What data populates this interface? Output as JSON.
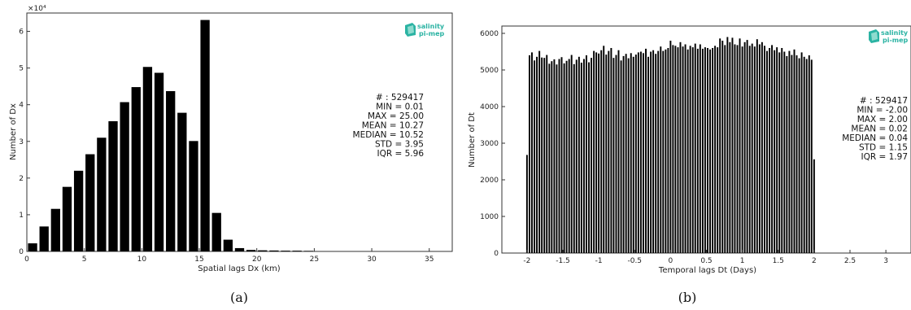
{
  "colors": {
    "bar": "#000000",
    "axis": "#333333",
    "logo_teal": "#2bb3a3"
  },
  "logo": {
    "line1": "salinity",
    "line2": "pi-mep"
  },
  "chart_data": [
    {
      "type": "bar",
      "caption": "(a)",
      "xlabel": "Spatial lags Dx (km)",
      "ylabel": "Number of Dx",
      "exponent_label": "×10⁴",
      "xlim": [
        0,
        37
      ],
      "ylim": [
        0,
        65000
      ],
      "xticks": [
        0,
        5,
        10,
        15,
        20,
        25,
        30,
        35
      ],
      "yticks": [
        0,
        10000,
        20000,
        30000,
        40000,
        50000,
        60000
      ],
      "ytick_labels": [
        "0",
        "1",
        "2",
        "3",
        "4",
        "5",
        "6"
      ],
      "bar_width": 0.8,
      "x": [
        0.5,
        1.5,
        2.5,
        3.5,
        4.5,
        5.5,
        6.5,
        7.5,
        8.5,
        9.5,
        10.5,
        11.5,
        12.5,
        13.5,
        14.5,
        15.5,
        16.5,
        17.5,
        18.5,
        19.5,
        20.5,
        21.5,
        22.5,
        23.5,
        24.5
      ],
      "values": [
        2200,
        6800,
        11600,
        17600,
        22000,
        26500,
        31000,
        35500,
        40700,
        44800,
        50300,
        48700,
        43700,
        37800,
        30100,
        63100,
        10500,
        3200,
        900,
        400,
        300,
        250,
        200,
        200,
        150
      ],
      "stats": [
        "# : 529417",
        "MIN = 0.01",
        "MAX =  25.00",
        "MEAN = 10.27",
        "MEDIAN = 10.52",
        "STD = 3.95",
        "IQR = 5.96"
      ]
    },
    {
      "type": "bar",
      "caption": "(b)",
      "xlabel": "Temporal lags Dt (Days)",
      "ylabel": "Number of Dt",
      "xlim": [
        -2.35,
        3.35
      ],
      "ylim": [
        0,
        6200
      ],
      "xticks": [
        -2,
        -1.5,
        -1,
        -0.5,
        0,
        0.5,
        1,
        1.5,
        2,
        2.5,
        3
      ],
      "yticks": [
        0,
        1000,
        2000,
        3000,
        4000,
        5000,
        6000
      ],
      "bar_width": 0.022,
      "x": [
        -2.0,
        -1.965,
        -1.931,
        -1.896,
        -1.862,
        -1.827,
        -1.793,
        -1.758,
        -1.724,
        -1.689,
        -1.655,
        -1.62,
        -1.586,
        -1.551,
        -1.517,
        -1.482,
        -1.448,
        -1.413,
        -1.379,
        -1.344,
        -1.31,
        -1.275,
        -1.241,
        -1.206,
        -1.172,
        -1.137,
        -1.103,
        -1.068,
        -1.034,
        -1.0,
        -0.965,
        -0.931,
        -0.896,
        -0.862,
        -0.827,
        -0.793,
        -0.758,
        -0.724,
        -0.689,
        -0.655,
        -0.62,
        -0.586,
        -0.551,
        -0.517,
        -0.482,
        -0.448,
        -0.413,
        -0.379,
        -0.344,
        -0.31,
        -0.275,
        -0.241,
        -0.206,
        -0.172,
        -0.137,
        -0.103,
        -0.068,
        -0.034,
        0.0,
        0.034,
        0.068,
        0.103,
        0.137,
        0.172,
        0.206,
        0.241,
        0.275,
        0.31,
        0.344,
        0.379,
        0.413,
        0.448,
        0.482,
        0.517,
        0.551,
        0.586,
        0.62,
        0.655,
        0.689,
        0.724,
        0.758,
        0.793,
        0.827,
        0.862,
        0.896,
        0.931,
        0.965,
        1.0,
        1.034,
        1.068,
        1.103,
        1.137,
        1.172,
        1.206,
        1.241,
        1.275,
        1.31,
        1.344,
        1.379,
        1.413,
        1.448,
        1.482,
        1.517,
        1.551,
        1.586,
        1.62,
        1.655,
        1.689,
        1.724,
        1.758,
        1.793,
        1.827,
        1.862,
        1.896,
        1.931,
        1.965,
        2.0
      ],
      "values": [
        2680,
        5400,
        5480,
        5260,
        5360,
        5520,
        5340,
        5330,
        5410,
        5170,
        5240,
        5290,
        5150,
        5300,
        5350,
        5180,
        5250,
        5300,
        5410,
        5160,
        5280,
        5360,
        5200,
        5300,
        5400,
        5210,
        5330,
        5520,
        5480,
        5450,
        5540,
        5660,
        5420,
        5520,
        5600,
        5330,
        5410,
        5540,
        5260,
        5380,
        5440,
        5320,
        5460,
        5360,
        5420,
        5480,
        5500,
        5460,
        5580,
        5360,
        5500,
        5540,
        5440,
        5520,
        5640,
        5520,
        5560,
        5600,
        5800,
        5680,
        5660,
        5620,
        5760,
        5640,
        5700,
        5560,
        5660,
        5620,
        5720,
        5580,
        5700,
        5580,
        5620,
        5600,
        5560,
        5600,
        5660,
        5620,
        5860,
        5800,
        5680,
        5900,
        5760,
        5880,
        5700,
        5680,
        5860,
        5640,
        5760,
        5820,
        5660,
        5720,
        5640,
        5840,
        5700,
        5760,
        5660,
        5520,
        5600,
        5680,
        5540,
        5620,
        5480,
        5600,
        5500,
        5380,
        5520,
        5410,
        5560,
        5400,
        5320,
        5480,
        5360,
        5300,
        5400,
        5280,
        2560
      ],
      "stats": [
        "# : 529417",
        "MIN = -2.00",
        "MAX =  2.00",
        "MEAN = 0.02",
        "MEDIAN = 0.04",
        "STD = 1.15",
        "IQR = 1.97"
      ]
    }
  ]
}
